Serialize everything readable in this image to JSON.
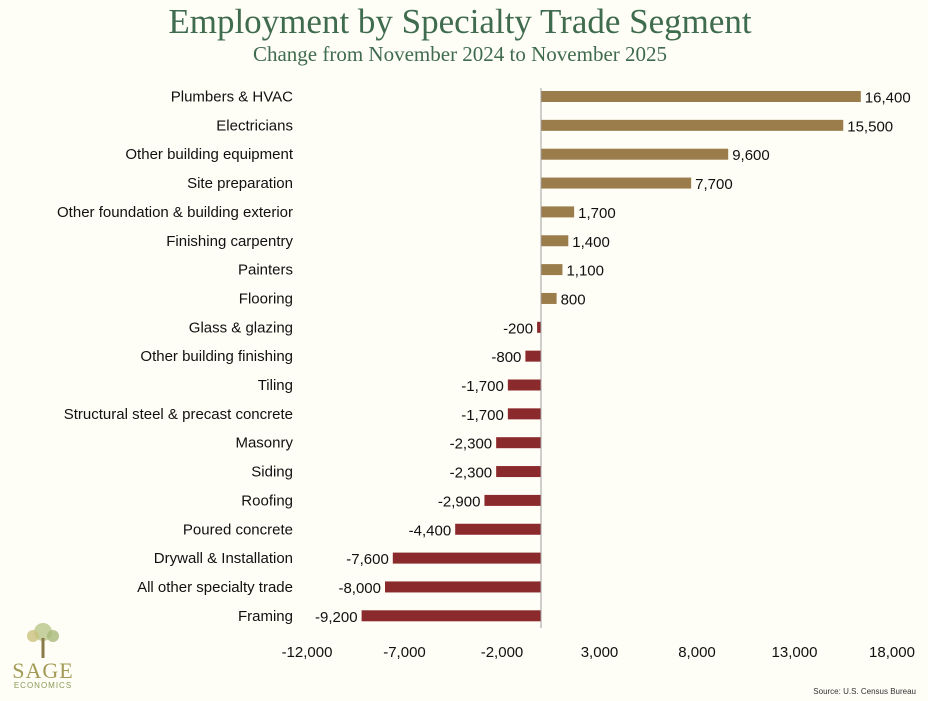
{
  "chart_data": {
    "type": "bar",
    "orientation": "horizontal",
    "title": "Employment by Specialty Trade Segment",
    "subtitle": "Change from November 2024 to November 2025",
    "categories": [
      "Plumbers & HVAC",
      "Electricians",
      "Other building equipment",
      "Site preparation",
      "Other foundation & building exterior",
      "Finishing carpentry",
      "Painters",
      "Flooring",
      "Glass & glazing",
      "Other building finishing",
      "Tiling",
      "Structural steel & precast concrete",
      "Masonry",
      "Siding",
      "Roofing",
      "Poured concrete",
      "Drywall & Installation",
      "All other specialty trade",
      "Framing"
    ],
    "values": [
      16400,
      15500,
      9600,
      7700,
      1700,
      1400,
      1100,
      800,
      -200,
      -800,
      -1700,
      -1700,
      -2300,
      -2300,
      -2900,
      -4400,
      -7600,
      -8000,
      -9200
    ],
    "value_labels": [
      "16,400",
      "15,500",
      "9,600",
      "7,700",
      "1,700",
      "1,400",
      "1,100",
      "800",
      "-200",
      "-800",
      "-1,700",
      "-1,700",
      "-2,300",
      "-2,300",
      "-2,900",
      "-4,400",
      "-7,600",
      "-8,000",
      "-9,200"
    ],
    "xlim": [
      -12000,
      18000
    ],
    "xticks": [
      -12000,
      -7000,
      -2000,
      3000,
      8000,
      13000,
      18000
    ],
    "xtick_labels": [
      "-12,000",
      "-7,000",
      "-2,000",
      "3,000",
      "8,000",
      "13,000",
      "18,000"
    ],
    "xlabel": "",
    "ylabel": "",
    "grid": false,
    "colors": {
      "positive": "#9b7d4c",
      "negative": "#8b2a2c",
      "axis": "#a0a0a0"
    }
  },
  "source": "Source: U.S. Census Bureau",
  "logo": {
    "name": "SAGE",
    "sub": "ECONOMICS"
  }
}
